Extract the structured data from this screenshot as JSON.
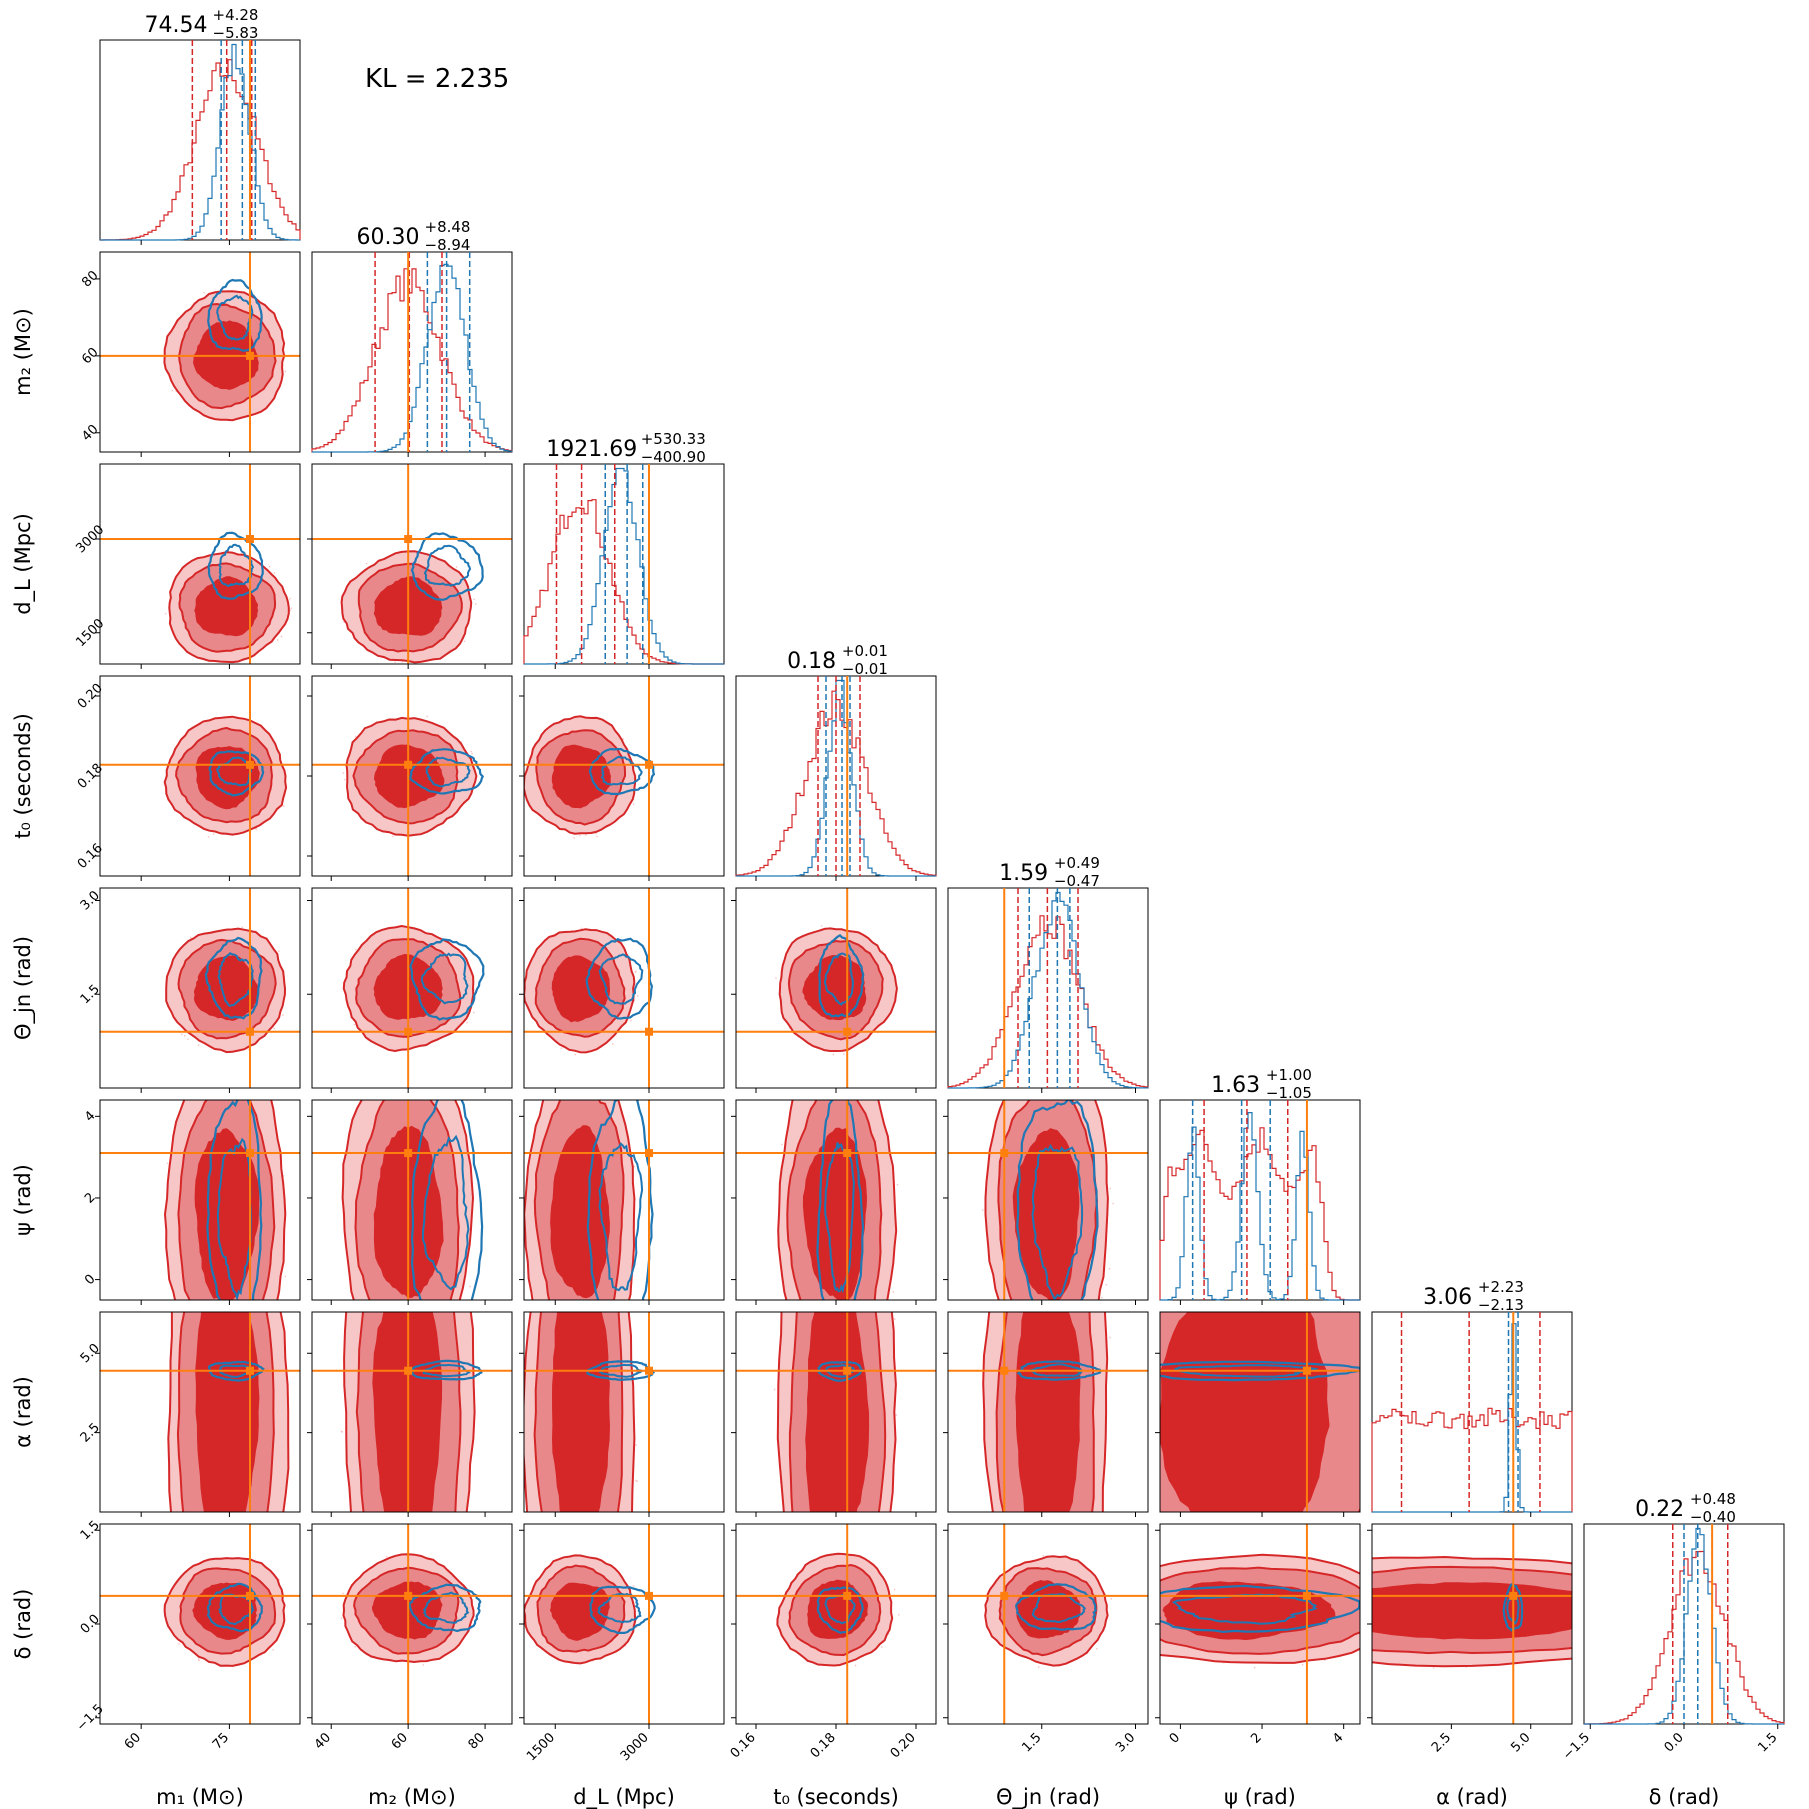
{
  "annotation": "KL = 2.235",
  "colors": {
    "posterior": "#d62728",
    "reference": "#1f77b4",
    "truth": "#ff7f0e"
  },
  "chart_data": {
    "type": "corner",
    "parameters": [
      {
        "key": "m1",
        "axis_label": "m₁ (M⊙)",
        "range": [
          53,
          87
        ],
        "ticks": [
          60,
          75
        ],
        "tick_labels": [
          "60",
          "75"
        ],
        "title_value": "74.54",
        "title_plus": "+4.28",
        "title_minus": "−5.83",
        "truth": 78.5,
        "hist_mean": 74.5,
        "hist_sd": 5.2,
        "ref_mean": 76,
        "ref_sd": 2.5,
        "q_red": [
          68.7,
          74.54,
          78.8
        ],
        "q_blue": [
          73.6,
          77.2,
          79.4
        ]
      },
      {
        "key": "m2",
        "axis_label": "m₂ (M⊙)",
        "range": [
          35,
          87
        ],
        "ticks": [
          40,
          60,
          80
        ],
        "tick_labels": [
          "40",
          "60",
          "80"
        ],
        "title_value": "60.30",
        "title_plus": "+8.48",
        "title_minus": "−8.94",
        "truth": 60,
        "hist_mean": 60,
        "hist_sd": 8.6,
        "ref_mean": 70,
        "ref_sd": 5,
        "q_red": [
          51.4,
          60.3,
          68.8
        ],
        "q_blue": [
          65,
          70,
          76
        ]
      },
      {
        "key": "dL",
        "axis_label": "d_L (Mpc)",
        "range": [
          1000,
          4200
        ],
        "ticks": [
          1500,
          3000
        ],
        "tick_labels": [
          "1500",
          "3000"
        ],
        "title_value": "1921.69",
        "title_plus": "+530.33",
        "title_minus": "−400.90",
        "truth": 3000,
        "hist_mean": 1900,
        "hist_sd": 450,
        "ref_mean": 2550,
        "ref_sd": 280,
        "q_red": [
          1520,
          1921.69,
          2452
        ],
        "q_blue": [
          2300,
          2650,
          2900
        ]
      },
      {
        "key": "t0",
        "axis_label": "t₀ (seconds)",
        "range": [
          0.155,
          0.205
        ],
        "ticks": [
          0.16,
          0.18,
          0.2
        ],
        "tick_labels": [
          "0.16",
          "0.18",
          "0.20"
        ],
        "title_value": "0.18",
        "title_plus": "+0.01",
        "title_minus": "−0.01",
        "truth": 0.1828,
        "hist_mean": 0.18,
        "hist_sd": 0.0075,
        "ref_mean": 0.181,
        "ref_sd": 0.003,
        "q_red": [
          0.1755,
          0.18,
          0.186
        ],
        "q_blue": [
          0.1775,
          0.1815,
          0.1835
        ]
      },
      {
        "key": "theta_jn",
        "axis_label": "Θ_jn (rad)",
        "range": [
          0,
          3.2
        ],
        "ticks": [
          1.5,
          3.0
        ],
        "tick_labels": [
          "1.5",
          "3.0"
        ],
        "title_value": "1.59",
        "title_plus": "+0.49",
        "title_minus": "−0.47",
        "truth": 0.9,
        "hist_mean": 1.59,
        "hist_sd": 0.5,
        "ref_mean": 1.75,
        "ref_sd": 0.35,
        "q_red": [
          1.12,
          1.59,
          2.08
        ],
        "q_blue": [
          1.3,
          1.75,
          1.95
        ]
      },
      {
        "key": "psi",
        "axis_label": "ψ (rad)",
        "range": [
          -0.5,
          4.4
        ],
        "ticks": [
          0,
          2,
          4
        ],
        "tick_labels": [
          "0",
          "2",
          "4"
        ],
        "title_value": "1.63",
        "title_plus": "+1.00",
        "title_minus": "−1.05",
        "truth": 3.1,
        "hist_mean": 1.6,
        "hist_sd": 1.0,
        "ref_mean": 1.6,
        "ref_sd": 1.0,
        "q_red": [
          0.58,
          1.63,
          2.63
        ],
        "q_blue": [
          0.3,
          1.5,
          2.2
        ]
      },
      {
        "key": "alpha",
        "axis_label": "α (rad)",
        "range": [
          0,
          6.3
        ],
        "ticks": [
          2.5,
          5.0
        ],
        "tick_labels": [
          "2.5",
          "5.0"
        ],
        "title_value": "3.06",
        "title_plus": "+2.23",
        "title_minus": "−2.13",
        "truth": 4.45,
        "hist_mean": 3.1,
        "hist_sd": 20,
        "ref_mean": 4.45,
        "ref_sd": 0.1,
        "q_red": [
          0.93,
          3.06,
          5.29
        ],
        "q_blue": [
          4.3,
          4.45,
          4.6
        ]
      },
      {
        "key": "delta",
        "axis_label": "δ (rad)",
        "range": [
          -1.6,
          1.6
        ],
        "ticks": [
          -1.5,
          0.0,
          1.5
        ],
        "tick_labels": [
          "−1.5",
          "0.0",
          "1.5"
        ],
        "title_value": "0.22",
        "title_plus": "+0.48",
        "title_minus": "−0.40",
        "truth": 0.45,
        "hist_mean": 0.22,
        "hist_sd": 0.44,
        "ref_mean": 0.25,
        "ref_sd": 0.2,
        "q_red": [
          -0.18,
          0.22,
          0.7
        ],
        "q_blue": [
          0.0,
          0.22,
          0.45
        ]
      }
    ],
    "y_tick_sets": {
      "m2": {
        "ticks": [
          40,
          60,
          80
        ],
        "labels": [
          "40",
          "60",
          "80"
        ]
      },
      "dL": {
        "ticks": [
          1500,
          3000
        ],
        "labels": [
          "1500",
          "3000"
        ]
      },
      "t0": {
        "ticks": [
          0.16,
          0.18,
          0.2
        ],
        "labels": [
          "0.16",
          "0.18",
          "0.20"
        ]
      },
      "theta_jn": {
        "ticks": [
          1.5,
          3.0
        ],
        "labels": [
          "1.5",
          "3.0"
        ]
      },
      "psi": {
        "ticks": [
          0,
          2,
          4
        ],
        "labels": [
          "0",
          "2",
          "4"
        ]
      },
      "alpha": {
        "ticks": [
          2.5,
          5.0
        ],
        "labels": [
          "2.5",
          "5.0"
        ]
      },
      "delta": {
        "ticks": [
          -1.5,
          0.0,
          1.5
        ],
        "labels": [
          "−1.5",
          "0.0",
          "1.5"
        ]
      }
    }
  }
}
